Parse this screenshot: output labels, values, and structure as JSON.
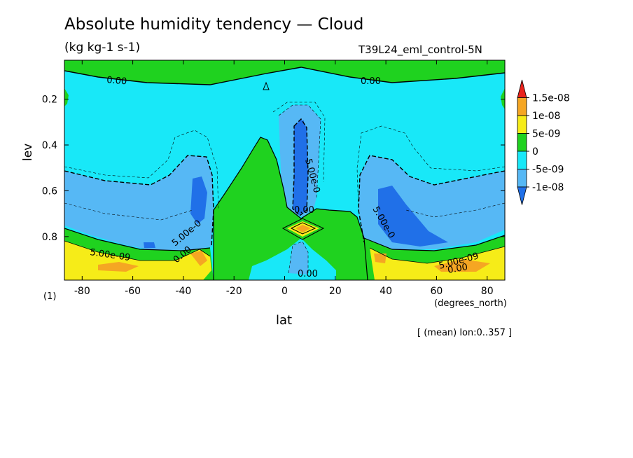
{
  "chart_data": {
    "type": "heatmap",
    "title": "Absolute humidity tendency — Cloud",
    "units": "(kg kg-1 s-1)",
    "run_label": "T39L24_eml_control-5N",
    "xlabel": "lat",
    "x_units": "(degrees_north)",
    "ylabel": "lev",
    "panel_label": "(1)",
    "footer": "[ (mean) lon:0..357 ]",
    "xlim": [
      -87,
      87
    ],
    "ylim": [
      0.03,
      0.99
    ],
    "y_inverted": true,
    "x_ticks": [
      "-80",
      "-60",
      "-40",
      "-20",
      "0",
      "20",
      "40",
      "60",
      "80"
    ],
    "y_ticks": [
      "0.2",
      "0.4",
      "0.6",
      "0.8"
    ],
    "colorbar": {
      "levels": [
        "1.5e-08",
        "1e-08",
        "5e-09",
        "0",
        "-5e-09",
        "-1e-08"
      ],
      "colors": [
        "#e8221b",
        "#f5a623",
        "#f6ec18",
        "#1fd21f",
        "#18e8f8",
        "#56b8f5",
        "#2070e8"
      ]
    },
    "contour_labels": [
      "0.00",
      "0.00",
      "0.00",
      "0.00",
      "0.00",
      "5.00e-09",
      "5.00e-0",
      "5.00e-0",
      "5.00e-0",
      "5.00e-09",
      "0.00"
    ]
  }
}
